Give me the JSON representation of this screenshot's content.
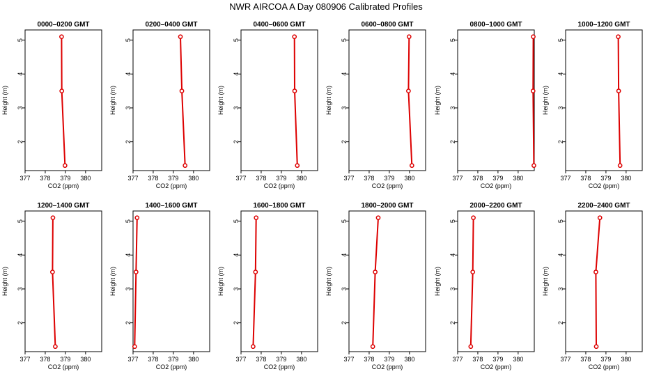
{
  "figure": {
    "title": "NWR AIRCOA A  Day 080906  Calibrated Profiles"
  },
  "colors": {
    "series": "#dd0000",
    "axis": "#000000",
    "background": "#ffffff"
  },
  "chart_data": [
    {
      "type": "line",
      "title": "0000–0200 GMT",
      "xlabel": "CO2 (ppm)",
      "ylabel": "Height (m)",
      "xlim": [
        377,
        380.8
      ],
      "ylim": [
        1.15,
        5.3
      ],
      "xticks": [
        377,
        378,
        379,
        380
      ],
      "yticks": [
        2,
        3,
        4,
        5
      ],
      "x": [
        378.98,
        378.82,
        378.81
      ],
      "y": [
        1.3,
        3.5,
        5.1
      ],
      "grid": false
    },
    {
      "type": "line",
      "title": "0200–0400 GMT",
      "xlabel": "CO2 (ppm)",
      "ylabel": "Height (m)",
      "xlim": [
        377,
        380.8
      ],
      "ylim": [
        1.15,
        5.3
      ],
      "xticks": [
        377,
        378,
        379,
        380
      ],
      "yticks": [
        2,
        3,
        4,
        5
      ],
      "x": [
        379.58,
        379.42,
        379.35
      ],
      "y": [
        1.3,
        3.5,
        5.1
      ],
      "grid": false
    },
    {
      "type": "line",
      "title": "0400–0600 GMT",
      "xlabel": "CO2 (ppm)",
      "ylabel": "Height (m)",
      "xlim": [
        377,
        380.8
      ],
      "ylim": [
        1.15,
        5.3
      ],
      "xticks": [
        377,
        378,
        379,
        380
      ],
      "yticks": [
        2,
        3,
        4,
        5
      ],
      "x": [
        379.79,
        379.66,
        379.65
      ],
      "y": [
        1.3,
        3.5,
        5.1
      ],
      "grid": false
    },
    {
      "type": "line",
      "title": "0600–0800 GMT",
      "xlabel": "CO2 (ppm)",
      "ylabel": "Height (m)",
      "xlim": [
        377,
        380.8
      ],
      "ylim": [
        1.15,
        5.3
      ],
      "xticks": [
        377,
        378,
        379,
        380
      ],
      "yticks": [
        2,
        3,
        4,
        5
      ],
      "x": [
        380.12,
        379.95,
        379.98
      ],
      "y": [
        1.3,
        3.5,
        5.1
      ],
      "grid": false
    },
    {
      "type": "line",
      "title": "0800–1000 GMT",
      "xlabel": "CO2 (ppm)",
      "ylabel": "Height (m)",
      "xlim": [
        377,
        380.8
      ],
      "ylim": [
        1.15,
        5.3
      ],
      "xticks": [
        377,
        378,
        379,
        380
      ],
      "yticks": [
        2,
        3,
        4,
        5
      ],
      "x": [
        380.78,
        380.74,
        380.75
      ],
      "y": [
        1.3,
        3.5,
        5.1
      ],
      "grid": false
    },
    {
      "type": "line",
      "title": "1000–1200 GMT",
      "xlabel": "CO2 (ppm)",
      "ylabel": "Height (m)",
      "xlim": [
        377,
        380.8
      ],
      "ylim": [
        1.15,
        5.3
      ],
      "xticks": [
        377,
        378,
        379,
        380
      ],
      "yticks": [
        2,
        3,
        4,
        5
      ],
      "x": [
        379.7,
        379.63,
        379.61
      ],
      "y": [
        1.3,
        3.5,
        5.1
      ],
      "grid": false
    },
    {
      "type": "line",
      "title": "1200–1400 GMT",
      "xlabel": "CO2 (ppm)",
      "ylabel": "Height (m)",
      "xlim": [
        377,
        380.8
      ],
      "ylim": [
        1.15,
        5.3
      ],
      "xticks": [
        377,
        378,
        379,
        380
      ],
      "yticks": [
        2,
        3,
        4,
        5
      ],
      "x": [
        378.5,
        378.36,
        378.38
      ],
      "y": [
        1.3,
        3.5,
        5.1
      ],
      "grid": false
    },
    {
      "type": "line",
      "title": "1400–1600 GMT",
      "xlabel": "CO2 (ppm)",
      "ylabel": "Height (m)",
      "xlim": [
        377,
        380.8
      ],
      "ylim": [
        1.15,
        5.3
      ],
      "xticks": [
        377,
        378,
        379,
        380
      ],
      "yticks": [
        2,
        3,
        4,
        5
      ],
      "x": [
        377.08,
        377.15,
        377.2
      ],
      "y": [
        1.3,
        3.5,
        5.1
      ],
      "grid": false
    },
    {
      "type": "line",
      "title": "1600–1800 GMT",
      "xlabel": "CO2 (ppm)",
      "ylabel": "Height (m)",
      "xlim": [
        377,
        380.8
      ],
      "ylim": [
        1.15,
        5.3
      ],
      "xticks": [
        377,
        378,
        379,
        380
      ],
      "yticks": [
        2,
        3,
        4,
        5
      ],
      "x": [
        377.6,
        377.72,
        377.75
      ],
      "y": [
        1.3,
        3.5,
        5.1
      ],
      "grid": false
    },
    {
      "type": "line",
      "title": "1800–2000 GMT",
      "xlabel": "CO2 (ppm)",
      "ylabel": "Height (m)",
      "xlim": [
        377,
        380.8
      ],
      "ylim": [
        1.15,
        5.3
      ],
      "xticks": [
        377,
        378,
        379,
        380
      ],
      "yticks": [
        2,
        3,
        4,
        5
      ],
      "x": [
        378.18,
        378.3,
        378.45
      ],
      "y": [
        1.3,
        3.5,
        5.1
      ],
      "grid": false
    },
    {
      "type": "line",
      "title": "2000–2200 GMT",
      "xlabel": "CO2 (ppm)",
      "ylabel": "Height (m)",
      "xlim": [
        377,
        380.8
      ],
      "ylim": [
        1.15,
        5.3
      ],
      "xticks": [
        377,
        378,
        379,
        380
      ],
      "yticks": [
        2,
        3,
        4,
        5
      ],
      "x": [
        377.65,
        377.75,
        377.78
      ],
      "y": [
        1.3,
        3.5,
        5.1
      ],
      "grid": false
    },
    {
      "type": "line",
      "title": "2200–2400 GMT",
      "xlabel": "CO2 (ppm)",
      "ylabel": "Height (m)",
      "xlim": [
        377,
        380.8
      ],
      "ylim": [
        1.15,
        5.3
      ],
      "xticks": [
        377,
        378,
        379,
        380
      ],
      "yticks": [
        2,
        3,
        4,
        5
      ],
      "x": [
        378.52,
        378.5,
        378.7
      ],
      "y": [
        1.3,
        3.5,
        5.1
      ],
      "grid": false
    }
  ]
}
